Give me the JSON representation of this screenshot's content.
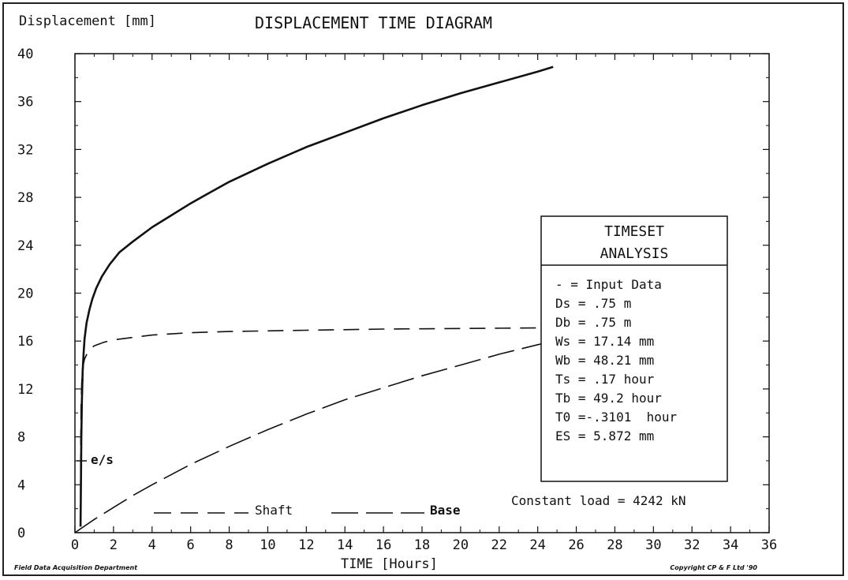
{
  "title": "DISPLACEMENT TIME DIAGRAM",
  "footer_left": "Field Data Acquisition Department",
  "footer_right": "Copyright CP & F Ltd '90",
  "constant_load": "Constant load =  4242 kN",
  "info_box": {
    "title_line1": "TIMESET",
    "title_line2": "ANALYSIS",
    "lines": [
      "- = Input Data",
      "Ds = .75 m",
      "Db = .75 m",
      "Ws = 17.14 mm",
      "Wb = 48.21 mm",
      "Ts = .17 hour",
      "Tb = 49.2 hour",
      "T0 =-.3101  hour",
      "ES = 5.872 mm"
    ]
  },
  "chart_data": {
    "type": "line",
    "xlabel": "TIME  [Hours]",
    "ylabel": "Displacement  [mm]",
    "xlim": [
      0,
      36
    ],
    "ylim": [
      0,
      40
    ],
    "xticks": [
      0,
      2,
      4,
      6,
      8,
      10,
      12,
      14,
      16,
      18,
      20,
      22,
      24,
      26,
      28,
      30,
      32,
      34,
      36
    ],
    "yticks": [
      0,
      4,
      8,
      12,
      16,
      20,
      24,
      28,
      32,
      36,
      40
    ],
    "grid": false,
    "series": [
      {
        "style": "solid",
        "x": [
          0.29,
          0.31,
          0.33,
          0.36,
          0.4,
          0.45,
          0.5,
          0.6,
          0.75,
          0.9,
          1.1,
          1.4,
          1.8,
          2.3,
          3,
          4,
          5,
          6,
          7,
          8,
          10,
          12,
          14,
          16,
          18,
          20,
          22,
          24,
          24.8
        ],
        "y": [
          0.5,
          4,
          8,
          11,
          13.5,
          15,
          16.2,
          17.5,
          18.6,
          19.5,
          20.4,
          21.4,
          22.4,
          23.4,
          24.3,
          25.5,
          26.5,
          27.5,
          28.4,
          29.3,
          30.8,
          32.2,
          33.4,
          34.6,
          35.7,
          36.7,
          37.6,
          38.5,
          38.9
        ]
      },
      {
        "name": "Shaft",
        "style": "dash",
        "x": [
          0.29,
          0.3,
          0.32,
          0.35,
          0.4,
          0.5,
          0.7,
          1,
          1.5,
          2,
          3,
          4,
          6,
          8,
          12,
          16,
          20,
          24,
          26,
          28
        ],
        "y": [
          1,
          7,
          10.5,
          12.5,
          13.8,
          14.5,
          15.2,
          15.6,
          15.9,
          16.1,
          16.3,
          16.5,
          16.7,
          16.8,
          16.9,
          17,
          17.05,
          17.1,
          17.12,
          17.13
        ]
      },
      {
        "name": "Base",
        "style": "longdash",
        "x": [
          0,
          1,
          2,
          3,
          4,
          6,
          8,
          10,
          12,
          14,
          16,
          18,
          20,
          22,
          24,
          26,
          28
        ],
        "y": [
          0,
          1.1,
          2.1,
          3.1,
          4.0,
          5.7,
          7.2,
          8.6,
          9.9,
          11.1,
          12.1,
          13.1,
          14.0,
          14.9,
          15.7,
          16.4,
          17.0
        ]
      },
      {
        "name": "e/s",
        "style": "dashdot",
        "x": [
          0.3,
          0.32,
          0.35,
          0.38,
          0.42,
          0.46,
          0.5
        ],
        "y": [
          3,
          6,
          9,
          11.5,
          13.5,
          14.8,
          15.8
        ]
      }
    ],
    "annotations": [
      "e/s"
    ]
  }
}
